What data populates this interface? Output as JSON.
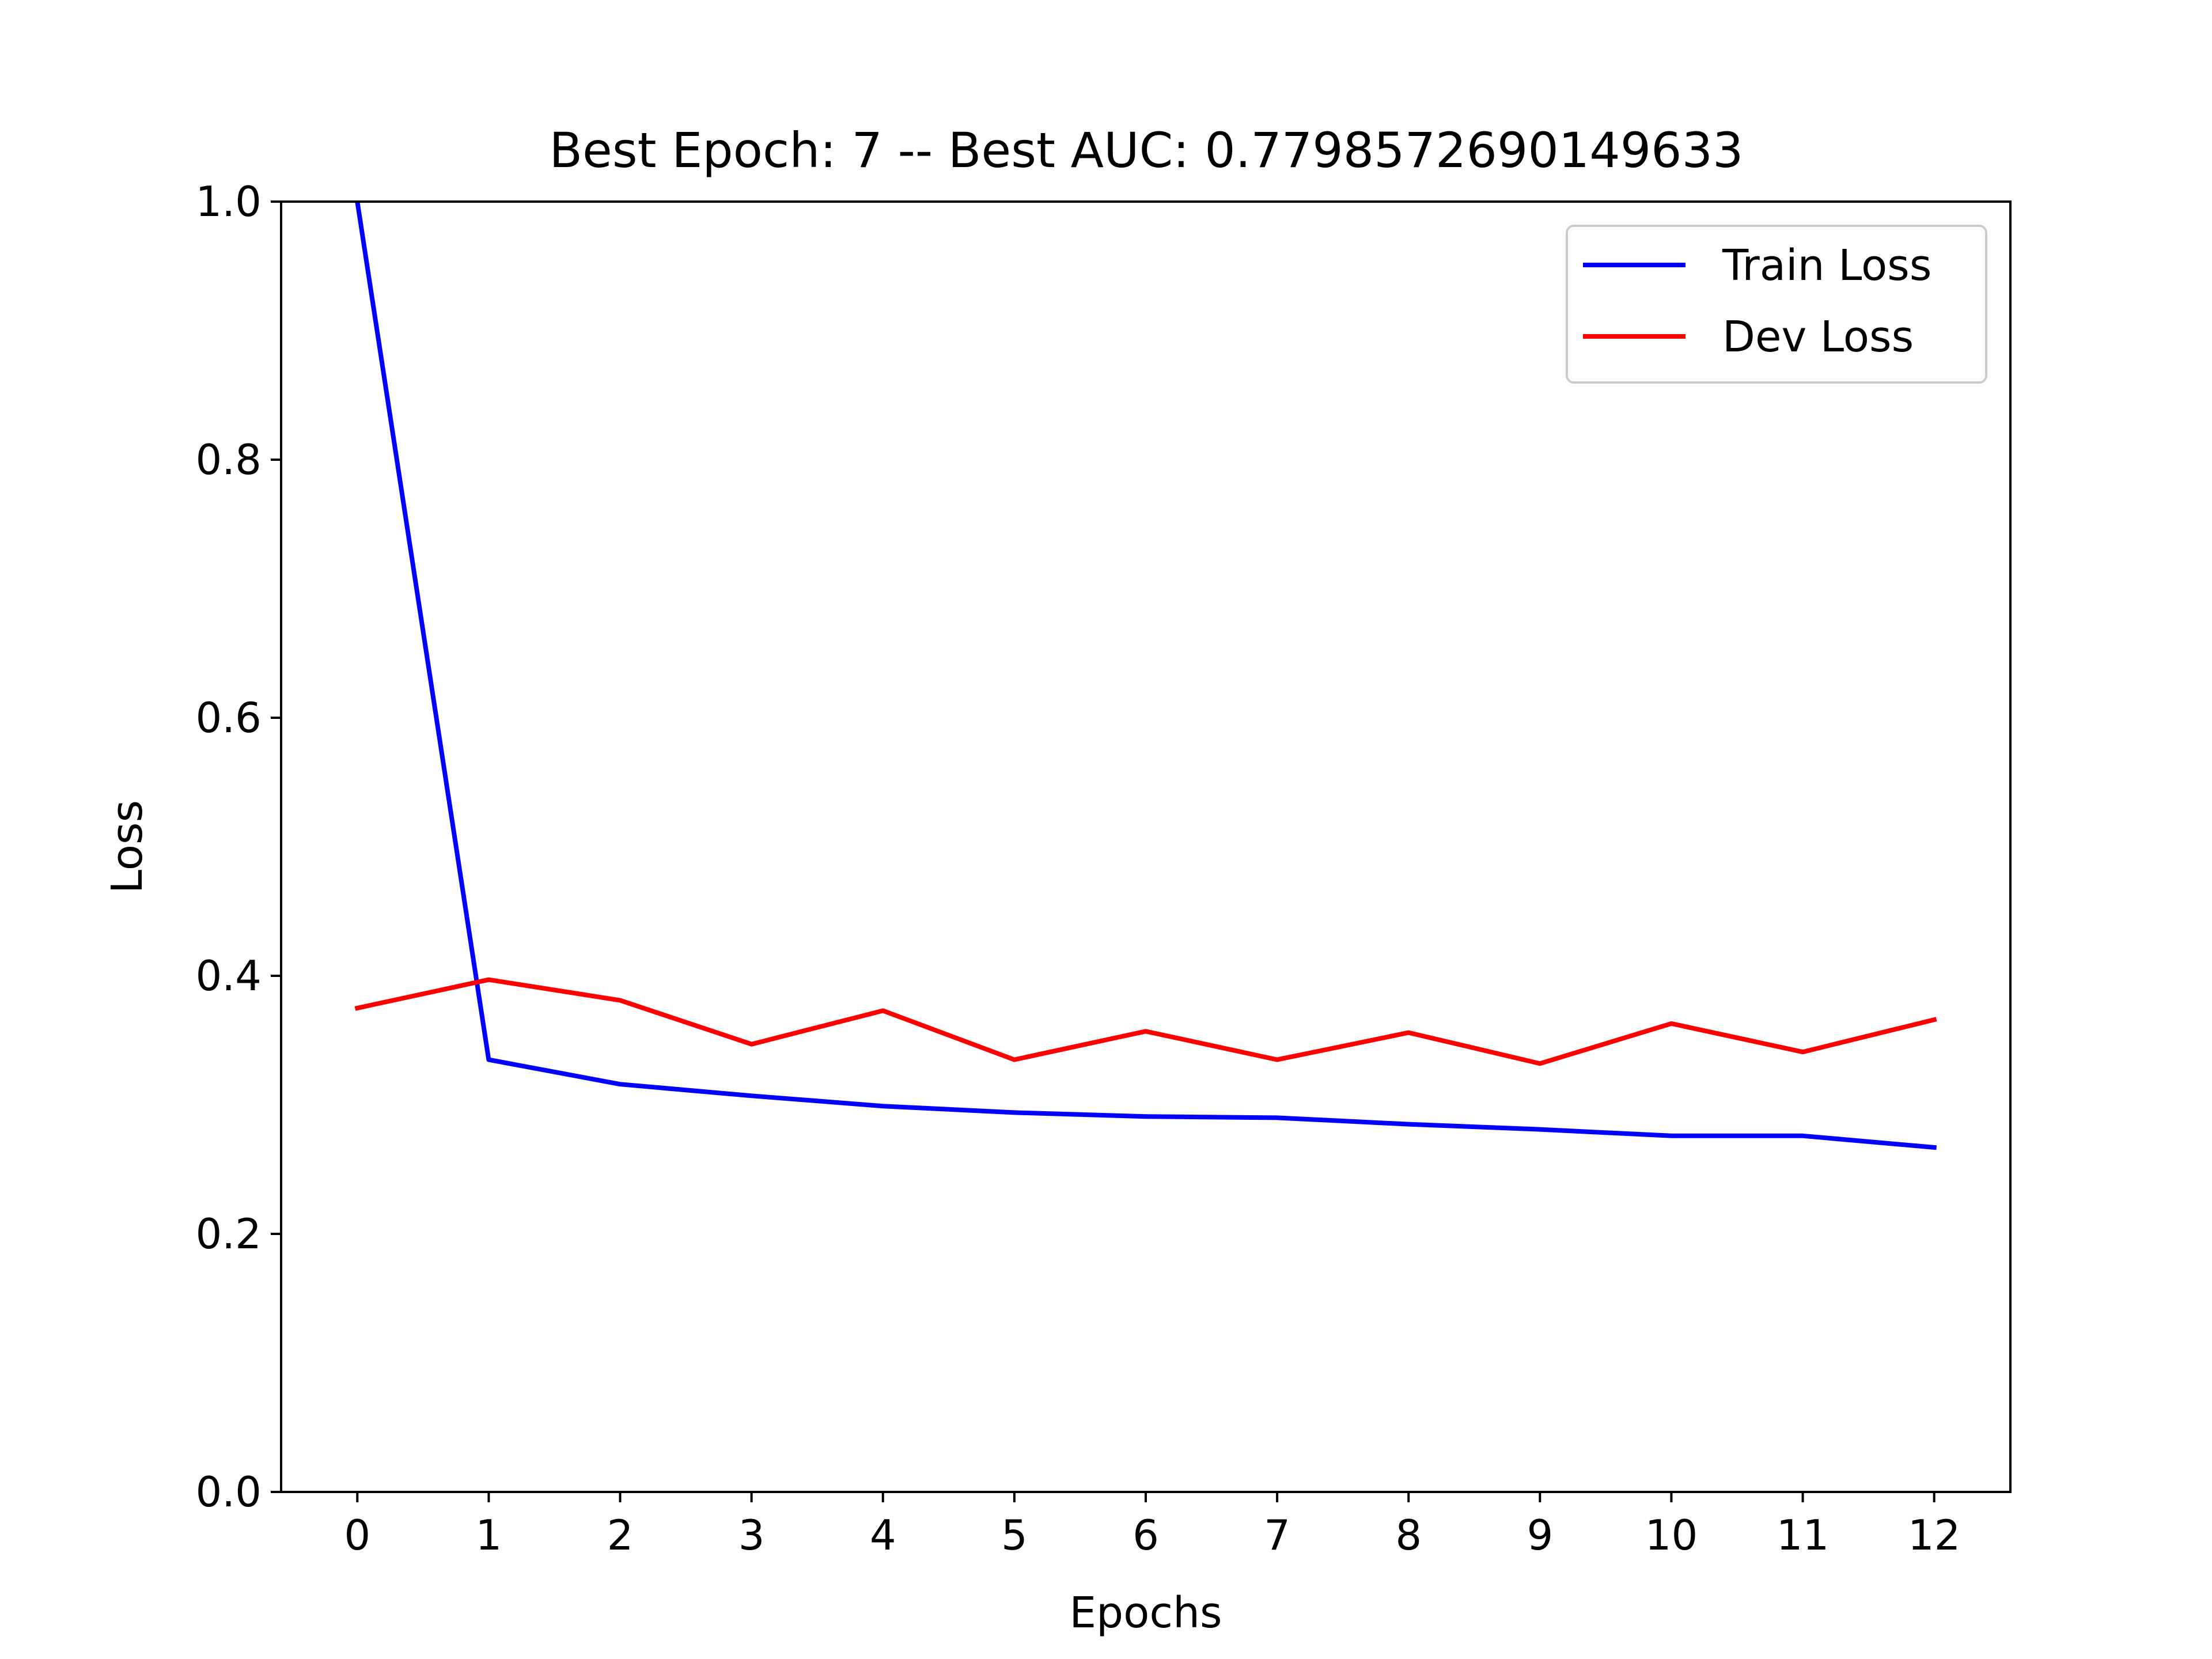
{
  "chart_data": {
    "type": "line",
    "title": "Best Epoch: 7 -- Best AUC: 0.7798572690149633",
    "xlabel": "Epochs",
    "ylabel": "Loss",
    "x": [
      0,
      1,
      2,
      3,
      4,
      5,
      6,
      7,
      8,
      9,
      10,
      11,
      12
    ],
    "xticks": [
      "0",
      "1",
      "2",
      "3",
      "4",
      "5",
      "6",
      "7",
      "8",
      "9",
      "10",
      "11",
      "12"
    ],
    "yticks": [
      "0.0",
      "0.2",
      "0.4",
      "0.6",
      "0.8",
      "1.0"
    ],
    "ylim": [
      0,
      1.0
    ],
    "xlim": [
      -0.58,
      12.58
    ],
    "grid": false,
    "legend_position": "top-right",
    "series": [
      {
        "name": "Train Loss",
        "color": "#0000ff",
        "values": [
          1.0,
          0.335,
          0.316,
          0.307,
          0.299,
          0.294,
          0.291,
          0.29,
          0.285,
          0.281,
          0.276,
          0.276,
          0.267
        ]
      },
      {
        "name": "Dev Loss",
        "color": "#ff0000",
        "values": [
          0.375,
          0.397,
          0.381,
          0.347,
          0.373,
          0.335,
          0.357,
          0.335,
          0.356,
          0.332,
          0.363,
          0.341,
          0.366
        ]
      }
    ]
  }
}
